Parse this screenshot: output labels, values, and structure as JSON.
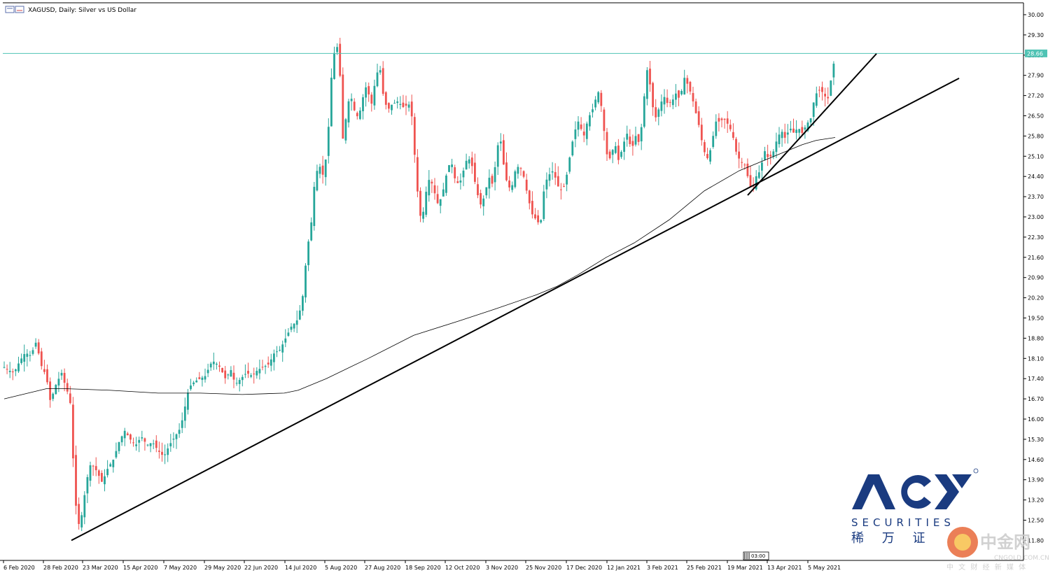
{
  "window": {
    "title": "XAGUSD, Daily:  Silver vs US Dollar"
  },
  "chart_data": {
    "type": "candlestick",
    "symbol": "XAGUSD",
    "timeframe": "Daily",
    "title": "XAGUSD, Daily:  Silver vs US Dollar",
    "ylim": [
      11.8,
      30.2
    ],
    "y_ticks": [
      "30.00",
      "29.30",
      "28.60",
      "27.90",
      "27.20",
      "26.50",
      "25.80",
      "25.10",
      "24.40",
      "23.70",
      "23.00",
      "22.30",
      "21.60",
      "20.90",
      "20.20",
      "19.50",
      "18.80",
      "18.10",
      "17.40",
      "16.70",
      "16.00",
      "15.30",
      "14.60",
      "13.90",
      "13.20",
      "12.50",
      "11.80"
    ],
    "x_ticks": [
      "6 Feb 2020",
      "28 Feb 2020",
      "23 Mar 2020",
      "15 Apr 2020",
      "7 May 2020",
      "29 May 2020",
      "22 Jun 2020",
      "14 Jul 2020",
      "5 Aug 2020",
      "27 Aug 2020",
      "18 Sep 2020",
      "12 Oct 2020",
      "3 Nov 2020",
      "25 Nov 2020",
      "17 Dec 2020",
      "12 Jan 2021",
      "3 Feb 2021",
      "25 Feb 2021",
      "19 Mar 2021",
      "13 Apr 2021",
      "5 May 2021"
    ],
    "current_price": "28.66",
    "price_line": 28.66,
    "price_path": [
      [
        0,
        17.8
      ],
      [
        6,
        17.7
      ],
      [
        14,
        17.6
      ],
      [
        22,
        18.0
      ],
      [
        30,
        18.3
      ],
      [
        38,
        18.2
      ],
      [
        46,
        18.7
      ],
      [
        52,
        17.9
      ],
      [
        60,
        17.5
      ],
      [
        66,
        16.6
      ],
      [
        74,
        17.2
      ],
      [
        82,
        17.6
      ],
      [
        88,
        17.1
      ],
      [
        94,
        16.7
      ],
      [
        98,
        14.8
      ],
      [
        103,
        12.8
      ],
      [
        108,
        12.2
      ],
      [
        112,
        12.9
      ],
      [
        118,
        13.9
      ],
      [
        124,
        14.5
      ],
      [
        132,
        14.2
      ],
      [
        140,
        13.8
      ],
      [
        148,
        14.3
      ],
      [
        156,
        14.6
      ],
      [
        164,
        15.2
      ],
      [
        172,
        15.6
      ],
      [
        180,
        15.3
      ],
      [
        188,
        15.1
      ],
      [
        196,
        15.4
      ],
      [
        204,
        15.1
      ],
      [
        212,
        15.2
      ],
      [
        220,
        14.9
      ],
      [
        228,
        14.7
      ],
      [
        236,
        15.1
      ],
      [
        244,
        15.4
      ],
      [
        252,
        15.7
      ],
      [
        258,
        16.4
      ],
      [
        264,
        17.1
      ],
      [
        272,
        17.3
      ],
      [
        280,
        17.4
      ],
      [
        288,
        17.5
      ],
      [
        294,
        17.9
      ],
      [
        300,
        18.0
      ],
      [
        308,
        17.8
      ],
      [
        316,
        17.4
      ],
      [
        324,
        17.7
      ],
      [
        330,
        17.2
      ],
      [
        338,
        17.4
      ],
      [
        346,
        17.6
      ],
      [
        354,
        17.5
      ],
      [
        362,
        17.7
      ],
      [
        370,
        17.8
      ],
      [
        378,
        17.9
      ],
      [
        386,
        18.3
      ],
      [
        394,
        18.4
      ],
      [
        402,
        18.8
      ],
      [
        410,
        19.2
      ],
      [
        418,
        19.4
      ],
      [
        424,
        19.9
      ],
      [
        428,
        20.5
      ],
      [
        432,
        21.8
      ],
      [
        438,
        22.6
      ],
      [
        444,
        24.4
      ],
      [
        450,
        24.8
      ],
      [
        456,
        24.4
      ],
      [
        462,
        25.5
      ],
      [
        466,
        27.4
      ],
      [
        470,
        28.6
      ],
      [
        476,
        28.9
      ],
      [
        480,
        27.8
      ],
      [
        484,
        25.6
      ],
      [
        488,
        26.4
      ],
      [
        494,
        27.3
      ],
      [
        500,
        26.7
      ],
      [
        506,
        26.4
      ],
      [
        512,
        27.1
      ],
      [
        518,
        27.6
      ],
      [
        524,
        26.8
      ],
      [
        530,
        27.7
      ],
      [
        536,
        28.3
      ],
      [
        542,
        27.1
      ],
      [
        548,
        26.7
      ],
      [
        554,
        26.9
      ],
      [
        562,
        27.0
      ],
      [
        570,
        26.8
      ],
      [
        578,
        26.9
      ],
      [
        584,
        26.3
      ],
      [
        588,
        24.3
      ],
      [
        592,
        23.6
      ],
      [
        596,
        22.7
      ],
      [
        602,
        23.8
      ],
      [
        608,
        24.4
      ],
      [
        614,
        23.9
      ],
      [
        620,
        23.4
      ],
      [
        626,
        23.8
      ],
      [
        632,
        24.5
      ],
      [
        638,
        25.0
      ],
      [
        644,
        24.3
      ],
      [
        650,
        24.1
      ],
      [
        656,
        24.6
      ],
      [
        662,
        25.1
      ],
      [
        668,
        24.8
      ],
      [
        674,
        24.0
      ],
      [
        680,
        23.4
      ],
      [
        686,
        23.7
      ],
      [
        692,
        24.4
      ],
      [
        698,
        24.1
      ],
      [
        704,
        25.3
      ],
      [
        708,
        25.9
      ],
      [
        712,
        25.0
      ],
      [
        718,
        24.2
      ],
      [
        724,
        23.9
      ],
      [
        730,
        24.6
      ],
      [
        736,
        24.8
      ],
      [
        742,
        24.4
      ],
      [
        748,
        23.7
      ],
      [
        754,
        23.1
      ],
      [
        760,
        22.9
      ],
      [
        766,
        22.7
      ],
      [
        770,
        23.8
      ],
      [
        776,
        24.4
      ],
      [
        784,
        24.6
      ],
      [
        792,
        24.0
      ],
      [
        798,
        23.9
      ],
      [
        804,
        24.5
      ],
      [
        808,
        25.1
      ],
      [
        814,
        25.9
      ],
      [
        820,
        26.3
      ],
      [
        828,
        25.8
      ],
      [
        834,
        26.4
      ],
      [
        842,
        26.8
      ],
      [
        848,
        27.4
      ],
      [
        854,
        26.7
      ],
      [
        860,
        25.2
      ],
      [
        866,
        25.0
      ],
      [
        872,
        25.6
      ],
      [
        878,
        24.9
      ],
      [
        884,
        25.5
      ],
      [
        890,
        25.9
      ],
      [
        896,
        25.3
      ],
      [
        902,
        25.8
      ],
      [
        908,
        25.5
      ],
      [
        912,
        26.6
      ],
      [
        916,
        27.6
      ],
      [
        920,
        28.4
      ],
      [
        924,
        27.1
      ],
      [
        930,
        26.4
      ],
      [
        936,
        26.8
      ],
      [
        942,
        27.2
      ],
      [
        948,
        26.9
      ],
      [
        954,
        27.0
      ],
      [
        960,
        27.3
      ],
      [
        966,
        27.0
      ],
      [
        970,
        27.9
      ],
      [
        976,
        27.6
      ],
      [
        982,
        27.2
      ],
      [
        988,
        26.6
      ],
      [
        994,
        26.0
      ],
      [
        998,
        25.4
      ],
      [
        1004,
        25.0
      ],
      [
        1010,
        25.4
      ],
      [
        1016,
        26.3
      ],
      [
        1022,
        26.3
      ],
      [
        1028,
        26.4
      ],
      [
        1034,
        26.2
      ],
      [
        1040,
        25.9
      ],
      [
        1046,
        25.2
      ],
      [
        1052,
        24.9
      ],
      [
        1058,
        24.8
      ],
      [
        1064,
        24.2
      ],
      [
        1068,
        23.9
      ],
      [
        1074,
        24.4
      ],
      [
        1080,
        24.6
      ],
      [
        1086,
        25.3
      ],
      [
        1092,
        25.0
      ],
      [
        1098,
        25.2
      ],
      [
        1104,
        25.7
      ],
      [
        1110,
        26.0
      ],
      [
        1116,
        25.7
      ],
      [
        1122,
        26.1
      ],
      [
        1128,
        25.9
      ],
      [
        1134,
        26.1
      ],
      [
        1140,
        25.9
      ],
      [
        1146,
        26.2
      ],
      [
        1152,
        26.4
      ],
      [
        1158,
        27.2
      ],
      [
        1164,
        27.4
      ],
      [
        1170,
        27.3
      ],
      [
        1176,
        27.0
      ],
      [
        1180,
        27.6
      ],
      [
        1184,
        28.2
      ],
      [
        1188,
        28.66
      ]
    ],
    "moving_average": [
      [
        0,
        16.7
      ],
      [
        60,
        17.05
      ],
      [
        90,
        17.05
      ],
      [
        150,
        17.0
      ],
      [
        220,
        16.9
      ],
      [
        280,
        16.9
      ],
      [
        340,
        16.85
      ],
      [
        400,
        16.9
      ],
      [
        420,
        17.0
      ],
      [
        460,
        17.4
      ],
      [
        520,
        18.1
      ],
      [
        585,
        18.9
      ],
      [
        650,
        19.4
      ],
      [
        700,
        19.8
      ],
      [
        760,
        20.3
      ],
      [
        790,
        20.6
      ],
      [
        820,
        21.0
      ],
      [
        860,
        21.6
      ],
      [
        900,
        22.1
      ],
      [
        950,
        22.9
      ],
      [
        1000,
        23.9
      ],
      [
        1050,
        24.6
      ],
      [
        1100,
        25.1
      ],
      [
        1140,
        25.5
      ],
      [
        1160,
        25.65
      ],
      [
        1187,
        25.75
      ]
    ],
    "trendlines": [
      {
        "from": [
          102,
          11.8
        ],
        "to": [
          1370,
          27.8
        ]
      },
      {
        "from": [
          1068,
          23.75
        ],
        "to": [
          1252,
          28.65
        ]
      }
    ],
    "highlight_label": "03:00",
    "grid": false,
    "legend": "none"
  },
  "watermark": {
    "logo_text": "ACY",
    "logo_sub": "SECURITIES",
    "logo_cn": "稀 万 证",
    "brand_cn": "中金网",
    "brand_url": "CNGOLD.COM.CN",
    "brand_tagline": "中 文 财 经 新 媒 体"
  },
  "colors": {
    "bull": "#26a69a",
    "bear": "#ef5350",
    "price_line": "#4fc3b4",
    "trend": "#000000",
    "ma": "#000000",
    "logo": "#1a3b80"
  }
}
